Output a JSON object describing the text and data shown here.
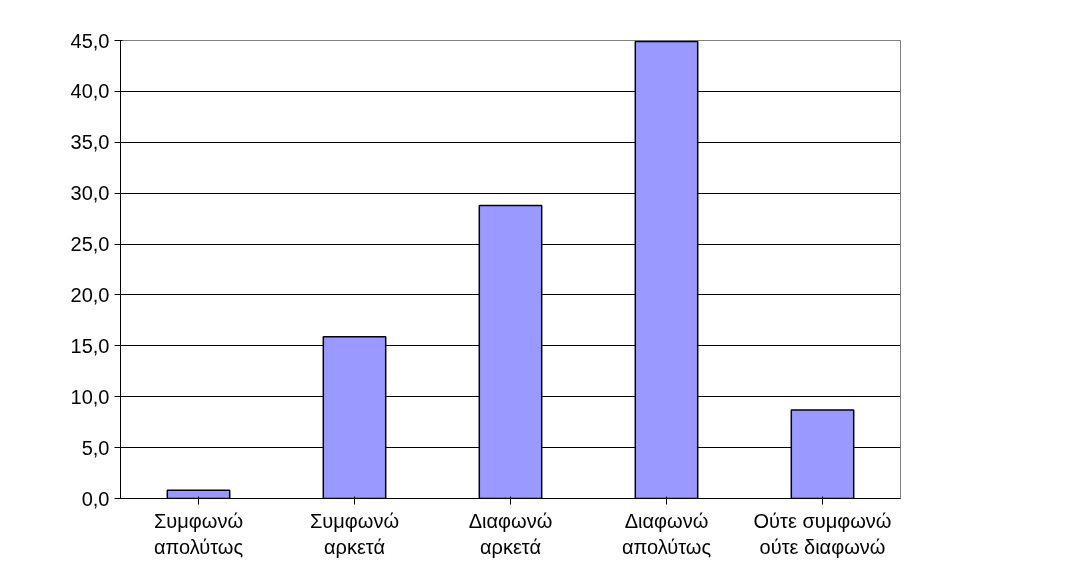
{
  "chart_data": {
    "type": "bar",
    "categories": [
      "Συμφωνώ απολύτως",
      "Συμφωνώ αρκετά",
      "Διαφωνώ αρκετά",
      "Διαφωνώ απολύτως",
      "Ούτε συμφωνώ ούτε διαφωνώ"
    ],
    "values": [
      0.8,
      15.9,
      28.8,
      44.9,
      8.7
    ],
    "color": "#9999ff",
    "ylim": [
      0,
      45
    ],
    "yticks": [
      {
        "value": 0,
        "label": "0,0"
      },
      {
        "value": 5,
        "label": "5,0"
      },
      {
        "value": 10,
        "label": "10,0"
      },
      {
        "value": 15,
        "label": "15,0"
      },
      {
        "value": 20,
        "label": "20,0"
      },
      {
        "value": 25,
        "label": "25,0"
      },
      {
        "value": 30,
        "label": "30,0"
      },
      {
        "value": 35,
        "label": "35,0"
      },
      {
        "value": 40,
        "label": "40,0"
      },
      {
        "value": 45,
        "label": "45,0"
      }
    ],
    "grid": "y"
  }
}
